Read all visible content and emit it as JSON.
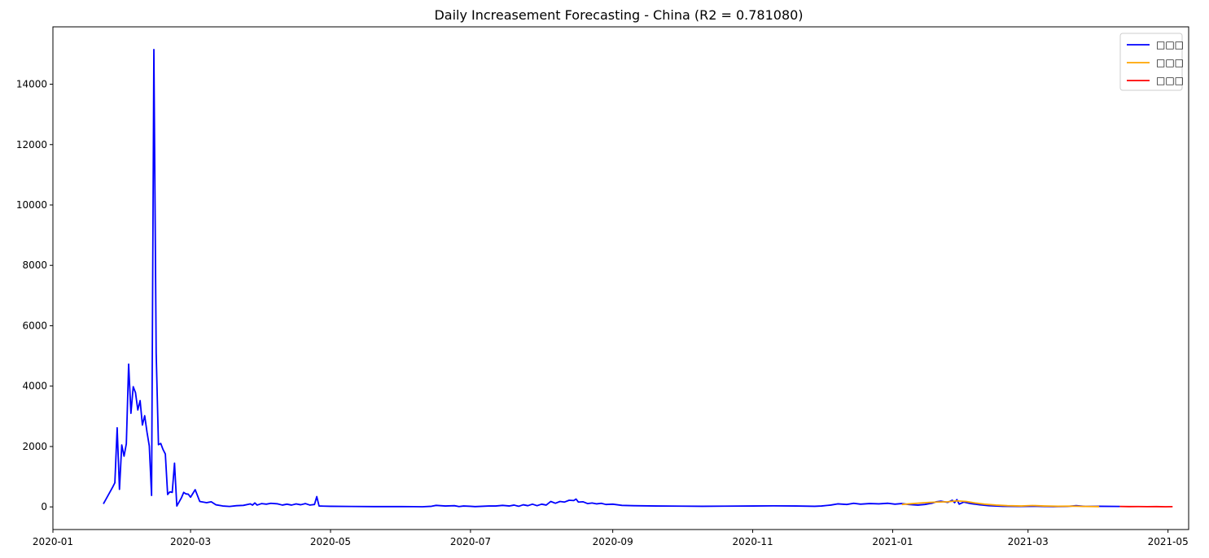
{
  "chart_data": {
    "type": "line",
    "title": "Daily Increasement Forecasting - China (R2 = 0.781080)",
    "xlabel": "",
    "ylabel": "",
    "x_axis_type": "date",
    "xlim": [
      "2020-01-01",
      "2021-05-10"
    ],
    "ylim": [
      -750,
      15900
    ],
    "x_ticks": [
      "2020-01-01",
      "2020-03-01",
      "2020-05-01",
      "2020-07-01",
      "2020-09-01",
      "2020-11-01",
      "2021-01-01",
      "2021-03-01",
      "2021-05-01"
    ],
    "x_tick_labels": [
      "2020-01",
      "2020-03",
      "2020-05",
      "2020-07",
      "2020-09",
      "2020-11",
      "2021-01",
      "2021-03",
      "2021-05"
    ],
    "y_ticks": [
      0,
      2000,
      4000,
      6000,
      8000,
      10000,
      12000,
      14000
    ],
    "y_tick_labels": [
      "0",
      "2000",
      "4000",
      "6000",
      "8000",
      "10000",
      "12000",
      "14000"
    ],
    "grid": false,
    "legend_position": "top-right",
    "series": [
      {
        "name": "□□□",
        "color": "#0000ff",
        "points": [
          [
            "2020-01-23",
            100
          ],
          [
            "2020-01-27",
            650
          ],
          [
            "2020-01-28",
            800
          ],
          [
            "2020-01-29",
            2620
          ],
          [
            "2020-01-30",
            580
          ],
          [
            "2020-01-31",
            2050
          ],
          [
            "2020-02-01",
            1680
          ],
          [
            "2020-02-02",
            2090
          ],
          [
            "2020-02-03",
            4730
          ],
          [
            "2020-02-04",
            3100
          ],
          [
            "2020-02-05",
            3980
          ],
          [
            "2020-02-06",
            3780
          ],
          [
            "2020-02-07",
            3210
          ],
          [
            "2020-02-08",
            3520
          ],
          [
            "2020-02-09",
            2710
          ],
          [
            "2020-02-10",
            3020
          ],
          [
            "2020-02-11",
            2480
          ],
          [
            "2020-02-12",
            2020
          ],
          [
            "2020-02-13",
            380
          ],
          [
            "2020-02-14",
            15150
          ],
          [
            "2020-02-15",
            5100
          ],
          [
            "2020-02-16",
            2060
          ],
          [
            "2020-02-17",
            2100
          ],
          [
            "2020-02-18",
            1900
          ],
          [
            "2020-02-19",
            1750
          ],
          [
            "2020-02-20",
            410
          ],
          [
            "2020-02-21",
            500
          ],
          [
            "2020-02-22",
            480
          ],
          [
            "2020-02-23",
            1450
          ],
          [
            "2020-02-24",
            30
          ],
          [
            "2020-02-26",
            300
          ],
          [
            "2020-02-27",
            480
          ],
          [
            "2020-02-28",
            430
          ],
          [
            "2020-02-29",
            420
          ],
          [
            "2020-03-01",
            320
          ],
          [
            "2020-03-03",
            570
          ],
          [
            "2020-03-05",
            180
          ],
          [
            "2020-03-08",
            140
          ],
          [
            "2020-03-10",
            170
          ],
          [
            "2020-03-12",
            70
          ],
          [
            "2020-03-15",
            30
          ],
          [
            "2020-03-18",
            15
          ],
          [
            "2020-03-21",
            40
          ],
          [
            "2020-03-24",
            50
          ],
          [
            "2020-03-27",
            100
          ],
          [
            "2020-03-28",
            60
          ],
          [
            "2020-03-29",
            130
          ],
          [
            "2020-03-30",
            60
          ],
          [
            "2020-04-01",
            110
          ],
          [
            "2020-04-03",
            90
          ],
          [
            "2020-04-05",
            120
          ],
          [
            "2020-04-08",
            100
          ],
          [
            "2020-04-10",
            60
          ],
          [
            "2020-04-12",
            90
          ],
          [
            "2020-04-14",
            60
          ],
          [
            "2020-04-16",
            100
          ],
          [
            "2020-04-18",
            70
          ],
          [
            "2020-04-20",
            110
          ],
          [
            "2020-04-22",
            60
          ],
          [
            "2020-04-24",
            80
          ],
          [
            "2020-04-25",
            340
          ],
          [
            "2020-04-26",
            30
          ],
          [
            "2020-04-28",
            25
          ],
          [
            "2020-05-01",
            20
          ],
          [
            "2020-05-10",
            15
          ],
          [
            "2020-05-20",
            10
          ],
          [
            "2020-06-01",
            10
          ],
          [
            "2020-06-10",
            5
          ],
          [
            "2020-06-14",
            20
          ],
          [
            "2020-06-16",
            50
          ],
          [
            "2020-06-20",
            30
          ],
          [
            "2020-06-24",
            40
          ],
          [
            "2020-06-26",
            10
          ],
          [
            "2020-06-28",
            30
          ],
          [
            "2020-07-01",
            20
          ],
          [
            "2020-07-03",
            10
          ],
          [
            "2020-07-06",
            20
          ],
          [
            "2020-07-09",
            30
          ],
          [
            "2020-07-12",
            30
          ],
          [
            "2020-07-15",
            50
          ],
          [
            "2020-07-18",
            30
          ],
          [
            "2020-07-20",
            60
          ],
          [
            "2020-07-22",
            20
          ],
          [
            "2020-07-24",
            70
          ],
          [
            "2020-07-26",
            40
          ],
          [
            "2020-07-28",
            90
          ],
          [
            "2020-07-30",
            40
          ],
          [
            "2020-08-01",
            90
          ],
          [
            "2020-08-03",
            60
          ],
          [
            "2020-08-05",
            180
          ],
          [
            "2020-08-07",
            120
          ],
          [
            "2020-08-09",
            180
          ],
          [
            "2020-08-11",
            160
          ],
          [
            "2020-08-13",
            220
          ],
          [
            "2020-08-15",
            210
          ],
          [
            "2020-08-16",
            260
          ],
          [
            "2020-08-17",
            160
          ],
          [
            "2020-08-19",
            170
          ],
          [
            "2020-08-21",
            110
          ],
          [
            "2020-08-23",
            130
          ],
          [
            "2020-08-25",
            100
          ],
          [
            "2020-08-27",
            120
          ],
          [
            "2020-08-29",
            80
          ],
          [
            "2020-09-01",
            90
          ],
          [
            "2020-09-05",
            50
          ],
          [
            "2020-09-10",
            40
          ],
          [
            "2020-09-20",
            30
          ],
          [
            "2020-10-01",
            25
          ],
          [
            "2020-10-10",
            20
          ],
          [
            "2020-10-20",
            25
          ],
          [
            "2020-11-01",
            30
          ],
          [
            "2020-11-10",
            35
          ],
          [
            "2020-11-20",
            30
          ],
          [
            "2020-11-28",
            20
          ],
          [
            "2020-12-01",
            30
          ],
          [
            "2020-12-05",
            60
          ],
          [
            "2020-12-08",
            100
          ],
          [
            "2020-12-12",
            80
          ],
          [
            "2020-12-15",
            120
          ],
          [
            "2020-12-18",
            90
          ],
          [
            "2020-12-22",
            110
          ],
          [
            "2020-12-26",
            100
          ],
          [
            "2020-12-30",
            120
          ],
          [
            "2021-01-02",
            90
          ],
          [
            "2021-01-05",
            110
          ],
          [
            "2021-01-08",
            80
          ],
          [
            "2021-01-12",
            60
          ],
          [
            "2021-01-15",
            80
          ],
          [
            "2021-01-18",
            120
          ],
          [
            "2021-01-20",
            170
          ],
          [
            "2021-01-22",
            190
          ],
          [
            "2021-01-25",
            150
          ],
          [
            "2021-01-27",
            220
          ],
          [
            "2021-01-28",
            140
          ],
          [
            "2021-01-29",
            240
          ],
          [
            "2021-01-30",
            90
          ],
          [
            "2021-02-01",
            160
          ],
          [
            "2021-02-04",
            110
          ],
          [
            "2021-02-08",
            70
          ],
          [
            "2021-02-12",
            40
          ],
          [
            "2021-02-18",
            20
          ],
          [
            "2021-02-25",
            15
          ],
          [
            "2021-03-05",
            20
          ],
          [
            "2021-03-12",
            10
          ],
          [
            "2021-03-18",
            15
          ],
          [
            "2021-03-22",
            40
          ],
          [
            "2021-03-26",
            15
          ],
          [
            "2021-04-01",
            20
          ],
          [
            "2021-04-10",
            15
          ]
        ]
      },
      {
        "name": "□□□",
        "color": "#ffa500",
        "points": [
          [
            "2021-01-05",
            80
          ],
          [
            "2021-01-10",
            110
          ],
          [
            "2021-01-15",
            140
          ],
          [
            "2021-01-20",
            160
          ],
          [
            "2021-01-25",
            170
          ],
          [
            "2021-01-29",
            200
          ],
          [
            "2021-02-02",
            180
          ],
          [
            "2021-02-06",
            130
          ],
          [
            "2021-02-10",
            90
          ],
          [
            "2021-02-15",
            60
          ],
          [
            "2021-02-20",
            40
          ],
          [
            "2021-02-26",
            30
          ],
          [
            "2021-03-03",
            45
          ],
          [
            "2021-03-08",
            30
          ],
          [
            "2021-03-14",
            20
          ],
          [
            "2021-03-20",
            25
          ],
          [
            "2021-03-26",
            15
          ],
          [
            "2021-04-01",
            10
          ]
        ]
      },
      {
        "name": "□□□",
        "color": "#ff0000",
        "points": [
          [
            "2021-04-10",
            15
          ],
          [
            "2021-04-14",
            10
          ],
          [
            "2021-04-18",
            12
          ],
          [
            "2021-04-22",
            8
          ],
          [
            "2021-04-26",
            10
          ],
          [
            "2021-04-30",
            5
          ],
          [
            "2021-05-03",
            8
          ]
        ]
      }
    ]
  }
}
